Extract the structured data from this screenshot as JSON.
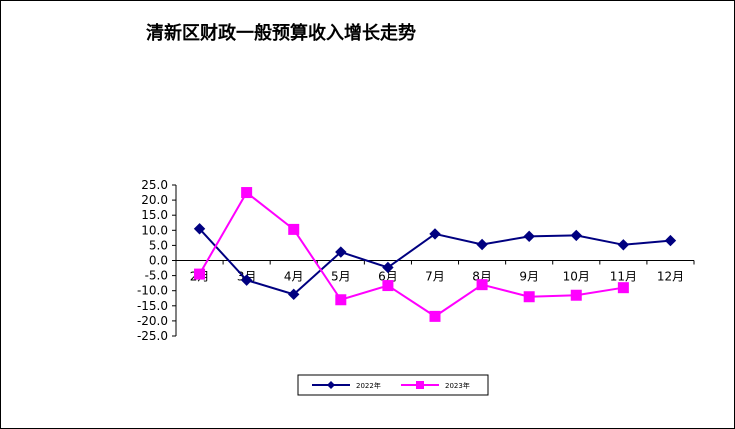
{
  "chart_data": {
    "type": "line",
    "title": "清新区财政一般预算收入增长走势",
    "xlabel": "",
    "ylabel": "",
    "categories": [
      "2月",
      "3月",
      "4月",
      "5月",
      "6月",
      "7月",
      "8月",
      "9月",
      "10月",
      "11月",
      "12月"
    ],
    "ylim": [
      -25,
      25
    ],
    "yticks": [
      25,
      20,
      15,
      10,
      5,
      0,
      -5,
      -10,
      -15,
      -20,
      -25
    ],
    "ytick_labels": [
      "25.0",
      "20.0",
      "15.0",
      "10.0",
      "5.0",
      "0.0",
      "-5.0",
      "-10.0",
      "-15.0",
      "-20.0",
      "-25.0"
    ],
    "grid": false,
    "legend_position": "bottom",
    "series": [
      {
        "name": "2022年",
        "color": "#000080",
        "marker": "diamond",
        "values": [
          10.5,
          -6.5,
          -11.2,
          2.8,
          -2.3,
          8.8,
          5.3,
          8.0,
          8.3,
          5.2,
          6.6
        ]
      },
      {
        "name": "2023年",
        "color": "#ff00ff",
        "marker": "square",
        "values": [
          -4.5,
          22.5,
          10.3,
          -13.0,
          -8.3,
          -18.5,
          -8.0,
          -12.0,
          -11.5,
          -9.0,
          null
        ]
      }
    ]
  }
}
